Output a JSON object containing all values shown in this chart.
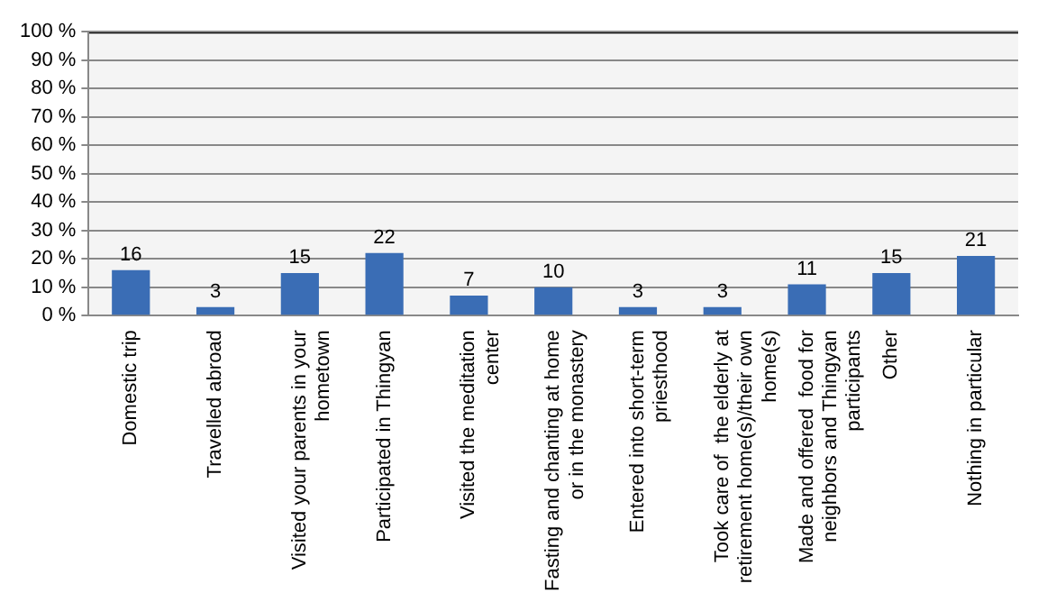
{
  "chart_data": {
    "type": "bar",
    "categories": [
      "Domestic trip",
      "Travelled abroad",
      "Visited your parents in your hometown",
      "Participated in Thingyan",
      "Visited the meditation center",
      "Fasting and chanting at home or in the monastery",
      "Entered into short-term priesthood",
      "Took care of  the elderly at retirement home(s)/their own home(s)",
      "Made and offered  food for neighbors and Thingyan participants",
      "Other",
      "Nothing in particular"
    ],
    "values": [
      16,
      3,
      15,
      22,
      7,
      10,
      3,
      3,
      11,
      15,
      21
    ],
    "color": "#3a6db5",
    "ylim": [
      0,
      100
    ],
    "yticks": [
      {
        "value": 0,
        "label": "0 %"
      },
      {
        "value": 10,
        "label": "10 %"
      },
      {
        "value": 20,
        "label": "20 %"
      },
      {
        "value": 30,
        "label": "30 %"
      },
      {
        "value": 40,
        "label": "40 %"
      },
      {
        "value": 50,
        "label": "50 %"
      },
      {
        "value": 60,
        "label": "60 %"
      },
      {
        "value": 70,
        "label": "70 %"
      },
      {
        "value": 80,
        "label": "80 %"
      },
      {
        "value": 90,
        "label": "90 %"
      },
      {
        "value": 100,
        "label": "100 %"
      }
    ],
    "grid": "y",
    "data_labels": true
  }
}
